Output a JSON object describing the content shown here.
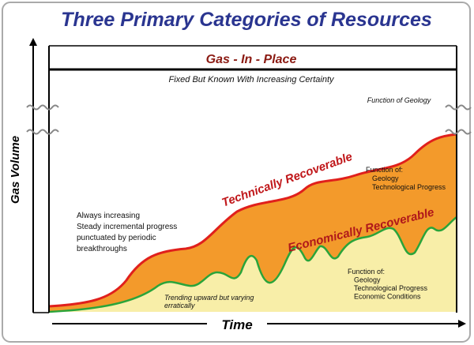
{
  "title": "Three Primary Categories of Resources",
  "y_axis_label": "Gas Volume",
  "x_axis_label": "Time",
  "gas_in_place": {
    "title": "Gas - In - Place",
    "subtitle": "Fixed But Known With Increasing Certainty",
    "note": "Function of Geology"
  },
  "technically_recoverable": {
    "label": "Technically Recoverable",
    "notes": [
      "Function of:",
      "Geology",
      "Technological Progress"
    ]
  },
  "economically_recoverable": {
    "label": "Economically Recoverable",
    "notes": [
      "Function of:",
      "Geology",
      "Technological Progress",
      "Economic Conditions"
    ]
  },
  "left_note": [
    "Always increasing",
    "Steady incremental progress",
    "punctuated by periodic",
    "breakthroughs"
  ],
  "trend_note": [
    "Trending upward but varying",
    "erratically"
  ]
}
